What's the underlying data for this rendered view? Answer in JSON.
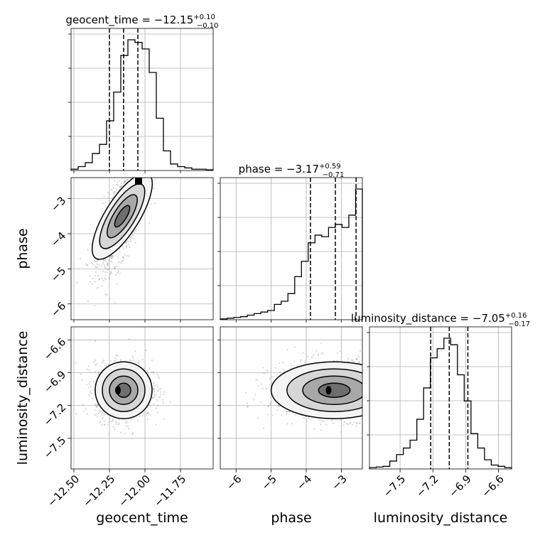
{
  "chart_data": {
    "type": "corner",
    "parameters": [
      {
        "name": "geocent_time",
        "label": "geocent_time",
        "range": [
          -12.52,
          -11.52
        ],
        "ticks": [
          -12.5,
          -12.25,
          -12.0,
          -11.75
        ],
        "tick_labels": [
          "−12.50",
          "−12.25",
          "−12.00",
          "−11.75"
        ],
        "median": -12.15,
        "q_lo": -12.25,
        "q_hi": -12.05,
        "title_main": "geocent_time = −12.15",
        "title_plus": "+0.10",
        "title_minus": "−0.10"
      },
      {
        "name": "phase",
        "label": "phase",
        "range": [
          -6.45,
          -2.4
        ],
        "ticks": [
          -6,
          -5,
          -4,
          -3
        ],
        "tick_labels": [
          "−6",
          "−5",
          "−4",
          "−3"
        ],
        "median": -3.17,
        "q_lo": -3.88,
        "q_hi": -2.58,
        "title_main": "phase = −3.17",
        "title_plus": "+0.59",
        "title_minus": "−0.71"
      },
      {
        "name": "luminosity_distance",
        "label": "luminosity_distance",
        "range": [
          -7.78,
          -6.48
        ],
        "ticks": [
          -7.5,
          -7.2,
          -6.9,
          -6.6
        ],
        "tick_labels": [
          "−7.5",
          "−7.2",
          "−6.9",
          "−6.6"
        ],
        "median": -7.05,
        "q_lo": -7.22,
        "q_hi": -6.88,
        "title_main": "luminosity_distance = −7.05",
        "title_plus": "+0.16",
        "title_minus": "−0.17"
      }
    ],
    "histograms": [
      [
        0.01,
        0.03,
        0.06,
        0.13,
        0.2,
        0.38,
        0.6,
        0.88,
        1.0,
        0.98,
        0.93,
        0.75,
        0.4,
        0.15,
        0.05,
        0.03,
        0.02,
        0.01,
        0.01,
        0.005
      ],
      [
        0.005,
        0.01,
        0.015,
        0.02,
        0.03,
        0.04,
        0.05,
        0.06,
        0.1,
        0.12,
        0.17,
        0.28,
        0.38,
        0.5,
        0.55,
        0.54,
        0.6,
        0.62,
        0.6,
        0.68,
        0.85
      ],
      [
        0.01,
        0.015,
        0.02,
        0.06,
        0.11,
        0.16,
        0.22,
        0.38,
        0.62,
        0.85,
        0.92,
        1.0,
        0.95,
        0.72,
        0.52,
        0.27,
        0.16,
        0.07,
        0.03,
        0.02,
        0.01
      ]
    ],
    "grid": true
  }
}
